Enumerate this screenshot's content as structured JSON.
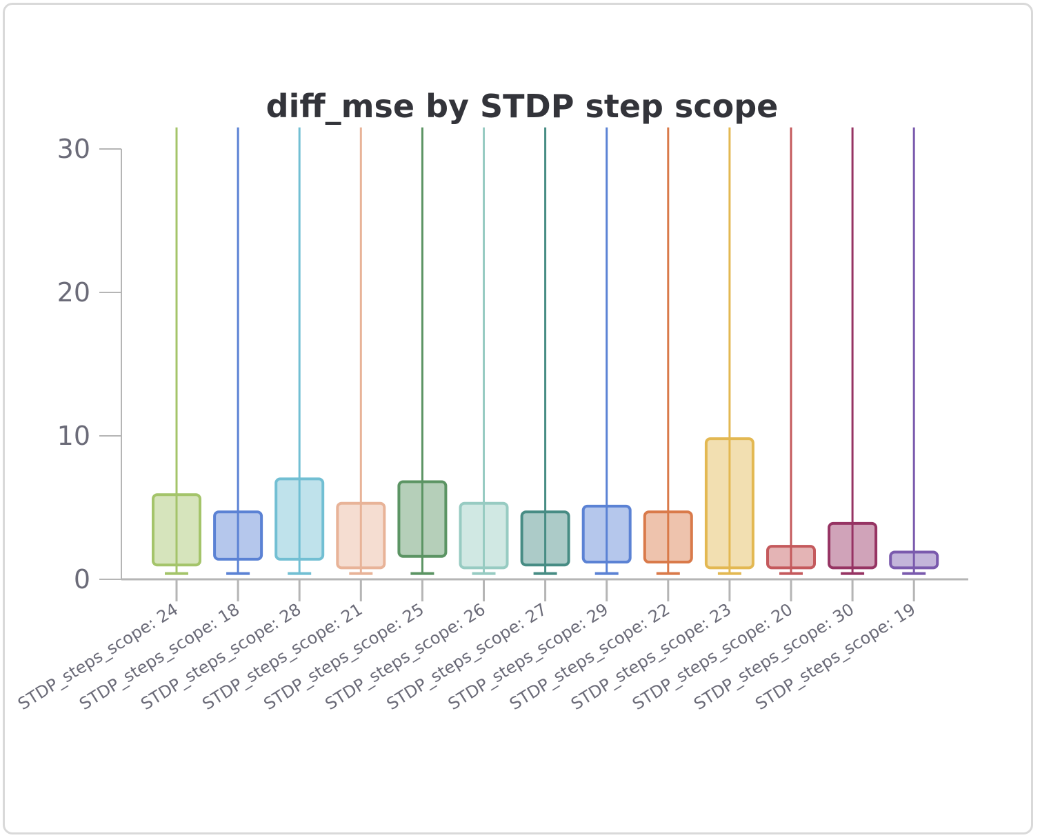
{
  "chart_data": {
    "type": "box",
    "title": "diff_mse by STDP step scope",
    "xlabel": "",
    "ylabel": "",
    "ylim": [
      0,
      31.5
    ],
    "yticks": [
      0,
      10,
      20,
      30
    ],
    "grid": false,
    "categories": [
      "STDP_steps_scope: 24",
      "STDP_steps_scope: 18",
      "STDP_steps_scope: 28",
      "STDP_steps_scope: 21",
      "STDP_steps_scope: 25",
      "STDP_steps_scope: 26",
      "STDP_steps_scope: 27",
      "STDP_steps_scope: 29",
      "STDP_steps_scope: 22",
      "STDP_steps_scope: 23",
      "STDP_steps_scope: 20",
      "STDP_steps_scope: 30",
      "STDP_steps_scope: 19"
    ],
    "boxes": [
      {
        "min": 0.4,
        "q1": 1.0,
        "q3": 5.9,
        "max": 31.5,
        "color": "#a4c46a"
      },
      {
        "min": 0.4,
        "q1": 1.4,
        "q3": 4.7,
        "max": 31.5,
        "color": "#5b82d4"
      },
      {
        "min": 0.4,
        "q1": 1.4,
        "q3": 7.0,
        "max": 31.5,
        "color": "#72bfd3"
      },
      {
        "min": 0.4,
        "q1": 0.8,
        "q3": 5.3,
        "max": 31.5,
        "color": "#e8b398"
      },
      {
        "min": 0.4,
        "q1": 1.6,
        "q3": 6.8,
        "max": 31.5,
        "color": "#5b9463"
      },
      {
        "min": 0.4,
        "q1": 0.8,
        "q3": 5.3,
        "max": 31.5,
        "color": "#97cbc2"
      },
      {
        "min": 0.4,
        "q1": 1.0,
        "q3": 4.7,
        "max": 31.5,
        "color": "#478c84"
      },
      {
        "min": 0.4,
        "q1": 1.2,
        "q3": 5.1,
        "max": 31.5,
        "color": "#5b82d4"
      },
      {
        "min": 0.4,
        "q1": 1.2,
        "q3": 4.7,
        "max": 31.5,
        "color": "#d97a4a"
      },
      {
        "min": 0.4,
        "q1": 0.8,
        "q3": 9.8,
        "max": 31.5,
        "color": "#e3b852"
      },
      {
        "min": 0.4,
        "q1": 0.8,
        "q3": 2.3,
        "max": 31.5,
        "color": "#c4595c"
      },
      {
        "min": 0.4,
        "q1": 0.8,
        "q3": 3.9,
        "max": 31.5,
        "color": "#963463"
      },
      {
        "min": 0.4,
        "q1": 0.8,
        "q3": 1.9,
        "max": 31.5,
        "color": "#7a5aad"
      }
    ]
  }
}
